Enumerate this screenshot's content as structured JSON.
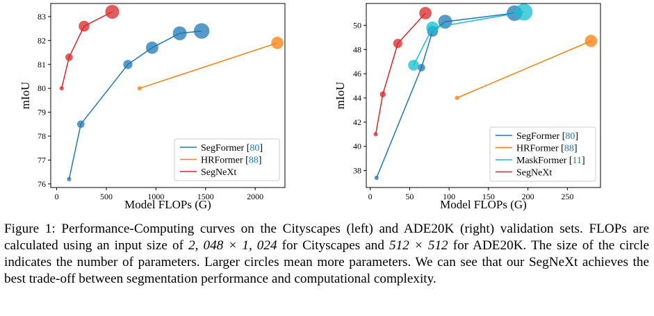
{
  "chart_data": [
    {
      "type": "scatter",
      "title": "Cityscapes",
      "xlabel": "Model FLOPs (G)",
      "ylabel": "mIoU",
      "xlim": [
        -60,
        2300
      ],
      "ylim": [
        75.85,
        83.55
      ],
      "xticks": [
        0,
        500,
        1000,
        1500,
        2000
      ],
      "yticks": [
        76,
        77,
        78,
        79,
        80,
        81,
        82,
        83
      ],
      "legend_position": "lower-right",
      "series": [
        {
          "name": "SegFormer",
          "cite": "80",
          "color": "#1f77b4",
          "x": [
            125,
            243,
            717,
            962,
            1240,
            1460
          ],
          "y": [
            76.2,
            78.5,
            81.0,
            81.7,
            82.3,
            82.4
          ],
          "size": [
            1,
            3,
            4,
            6,
            7,
            8
          ]
        },
        {
          "name": "HRFormer",
          "cite": "88",
          "color": "#ff7f0e",
          "x": [
            835,
            2224
          ],
          "y": [
            80.0,
            81.9
          ],
          "size": [
            1,
            6
          ]
        },
        {
          "name": "SegNeXt",
          "cite": "",
          "color": "#d62728",
          "x": [
            50,
            125,
            276,
            560
          ],
          "y": [
            80.0,
            81.3,
            82.6,
            83.2
          ],
          "size": [
            1,
            3,
            5,
            7
          ]
        }
      ]
    },
    {
      "type": "scatter",
      "title": "ADE20K",
      "xlabel": "Model FLOPs (G)",
      "ylabel": "mIoU",
      "xlim": [
        -5,
        292
      ],
      "ylim": [
        36.6,
        51.8
      ],
      "xticks": [
        0,
        50,
        100,
        150,
        200,
        250
      ],
      "yticks": [
        38,
        40,
        42,
        44,
        46,
        48,
        50
      ],
      "legend_position": "lower-right",
      "series": [
        {
          "name": "SegFormer",
          "cite": "80",
          "color": "#1f77b4",
          "x": [
            8,
            65,
            79,
            95,
            183
          ],
          "y": [
            37.4,
            46.5,
            49.5,
            50.3,
            51.0
          ],
          "size": [
            1,
            3,
            5,
            7,
            8
          ]
        },
        {
          "name": "HRFormer",
          "cite": "88",
          "color": "#ff7f0e",
          "x": [
            110,
            280
          ],
          "y": [
            44.0,
            48.7
          ],
          "size": [
            1,
            6
          ]
        },
        {
          "name": "MaskFormer",
          "cite": "11",
          "color": "#17becf",
          "x": [
            55,
            79,
            195
          ],
          "y": [
            46.7,
            49.8,
            51.1
          ],
          "size": [
            5,
            6,
            9
          ]
        },
        {
          "name": "SegNeXt",
          "cite": "",
          "color": "#d62728",
          "x": [
            7,
            16,
            35,
            70
          ],
          "y": [
            41.0,
            44.3,
            48.5,
            51.0
          ],
          "size": [
            1,
            2,
            4,
            6
          ]
        }
      ]
    }
  ],
  "caption": {
    "s1": "Figure 1: Performance-Computing curves on the Cityscapes (left) and ADE20K (right) validation sets. FLOPs are calculated using an input size of ",
    "m1": "2, 048 × 1, 024",
    "s2": " for Cityscapes and ",
    "m2": "512 × 512",
    "s3": " for ADE20K. The size of the circle indicates the number of parameters. Larger circles mean more parameters. We can see that our SegNeXt achieves the best trade-off between segmentation performance and computational complexity."
  }
}
